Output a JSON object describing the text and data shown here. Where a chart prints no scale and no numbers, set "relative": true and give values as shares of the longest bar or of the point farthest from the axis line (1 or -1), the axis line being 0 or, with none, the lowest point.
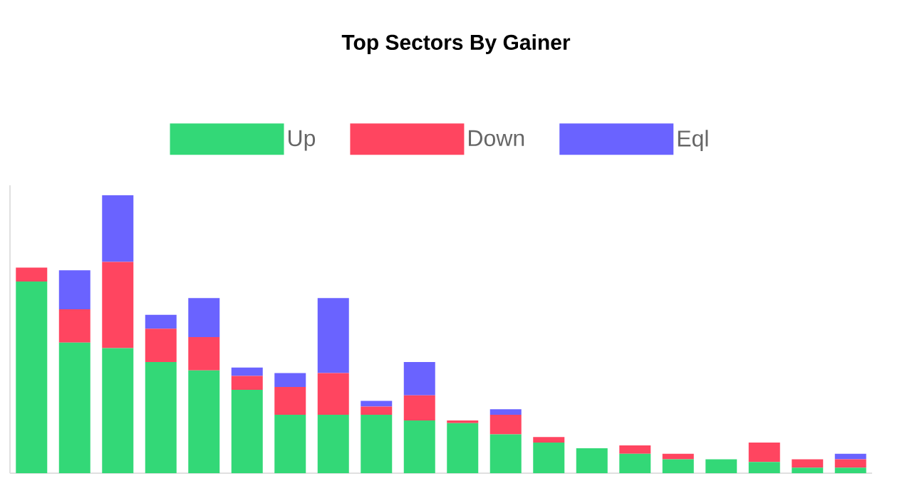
{
  "chart_data": {
    "type": "bar",
    "title": "Top Sectors By Gainer",
    "stacked": true,
    "relative": true,
    "legend": "top",
    "categories": [
      null,
      null,
      null,
      null,
      null,
      null,
      null,
      null,
      null,
      null,
      null,
      null,
      null,
      null,
      null,
      null,
      null,
      null,
      null,
      null
    ],
    "series": [
      {
        "name": "Up",
        "color": "#33d877",
        "values": [
          0.69,
          0.47,
          0.45,
          0.4,
          0.37,
          0.3,
          0.21,
          0.21,
          0.21,
          0.19,
          0.18,
          0.14,
          0.11,
          0.09,
          0.07,
          0.05,
          0.05,
          0.04,
          0.02,
          0.02
        ]
      },
      {
        "name": "Down",
        "color": "#ff4560",
        "values": [
          0.05,
          0.12,
          0.31,
          0.12,
          0.12,
          0.05,
          0.1,
          0.15,
          0.03,
          0.09,
          0.01,
          0.07,
          0.02,
          0,
          0.03,
          0.02,
          0,
          0.07,
          0.03,
          0.03
        ]
      },
      {
        "name": "Eql",
        "color": "#6a63ff",
        "values": [
          0,
          0.14,
          0.24,
          0.05,
          0.14,
          0.03,
          0.05,
          0.27,
          0.02,
          0.12,
          0,
          0.02,
          0,
          0,
          0,
          0,
          0,
          0,
          0,
          0.02
        ]
      }
    ]
  }
}
